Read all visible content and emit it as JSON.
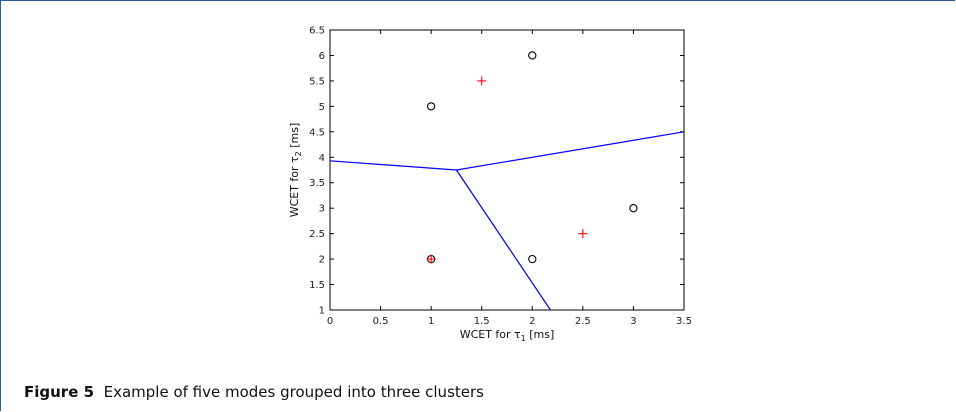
{
  "caption": {
    "label": "Figure 5",
    "text": "Example of five modes grouped into three clusters"
  },
  "chart_data": {
    "type": "scatter",
    "xlabel": {
      "main": "WCET for τ",
      "sub": "1",
      "unit": "[ms]"
    },
    "ylabel": {
      "main": "WCET for τ",
      "sub": "2",
      "unit": "[ms]"
    },
    "xlim": [
      0,
      3.5
    ],
    "ylim": [
      1,
      6.5
    ],
    "xticks": [
      "0",
      "0.5",
      "1",
      "1.5",
      "2",
      "2.5",
      "3",
      "3.5"
    ],
    "yticks": [
      "1",
      "1.5",
      "2",
      "2.5",
      "3",
      "3.5",
      "4",
      "4.5",
      "5",
      "5.5",
      "6",
      "6.5"
    ],
    "grid": false,
    "series": [
      {
        "marker": "circle",
        "color": "#000000",
        "points": [
          [
            1,
            2
          ],
          [
            1,
            5
          ],
          [
            2,
            6
          ],
          [
            2,
            2
          ],
          [
            3,
            3
          ]
        ]
      },
      {
        "marker": "plus",
        "color": "#ff0000",
        "points": [
          [
            1,
            2
          ],
          [
            1.5,
            5.5
          ],
          [
            2.5,
            2.5
          ]
        ]
      }
    ],
    "boundaries": {
      "color": "#0000ff",
      "lines": [
        [
          [
            0,
            3.93
          ],
          [
            1.25,
            3.75
          ]
        ],
        [
          [
            1.25,
            3.75
          ],
          [
            3.5,
            4.5
          ]
        ],
        [
          [
            1.25,
            3.75
          ],
          [
            2.18,
            1
          ]
        ]
      ]
    }
  }
}
